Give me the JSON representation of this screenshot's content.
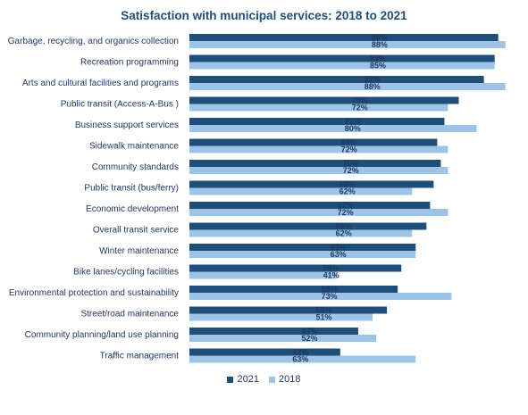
{
  "chart_data": {
    "type": "bar",
    "orientation": "horizontal",
    "title": "Satisfaction with municipal services: 2018 to 2021",
    "categories": [
      "Garbage, recycling, and organics collection",
      "Recreation programming",
      "Arts and cultural facilities and programs",
      "Public transit (Access-A-Bus )",
      "Business support services",
      "Sidewalk maintenance",
      "Community standards",
      "Public transit (bus/ferry)",
      "Economic development",
      "Overall transit service",
      "Winter maintenance",
      "Bike lanes/cycling facilities",
      "Environmental protection and sustainability",
      "Street/road maintenance",
      "Community planning/land use planning",
      "Traffic management"
    ],
    "series": [
      {
        "name": "2021",
        "color": "#1f4e79",
        "values": [
          86,
          85,
          82,
          75,
          71,
          69,
          70,
          68,
          67,
          66,
          63,
          59,
          58,
          55,
          47,
          42
        ],
        "labels": [
          "86%",
          "85%",
          "82%",
          "75%",
          "71%",
          "69%",
          "70%",
          "68%",
          "67%",
          "66%",
          "63%",
          "59%",
          "58%",
          "55%",
          "47%",
          "42%"
        ]
      },
      {
        "name": "2018",
        "color": "#9dc3e6",
        "values": [
          88,
          85,
          88,
          72,
          80,
          72,
          72,
          62,
          72,
          62,
          63,
          41,
          73,
          51,
          52,
          63
        ],
        "labels": [
          "88%",
          "85%",
          "88%",
          "72%",
          "80%",
          "72%",
          "72%",
          "62%",
          "72%",
          "62%",
          "63%",
          "41%",
          "73%",
          "51%",
          "52%",
          "63%"
        ]
      }
    ],
    "xlim": [
      0,
      100
    ],
    "grid": false,
    "legend_position": "bottom"
  }
}
